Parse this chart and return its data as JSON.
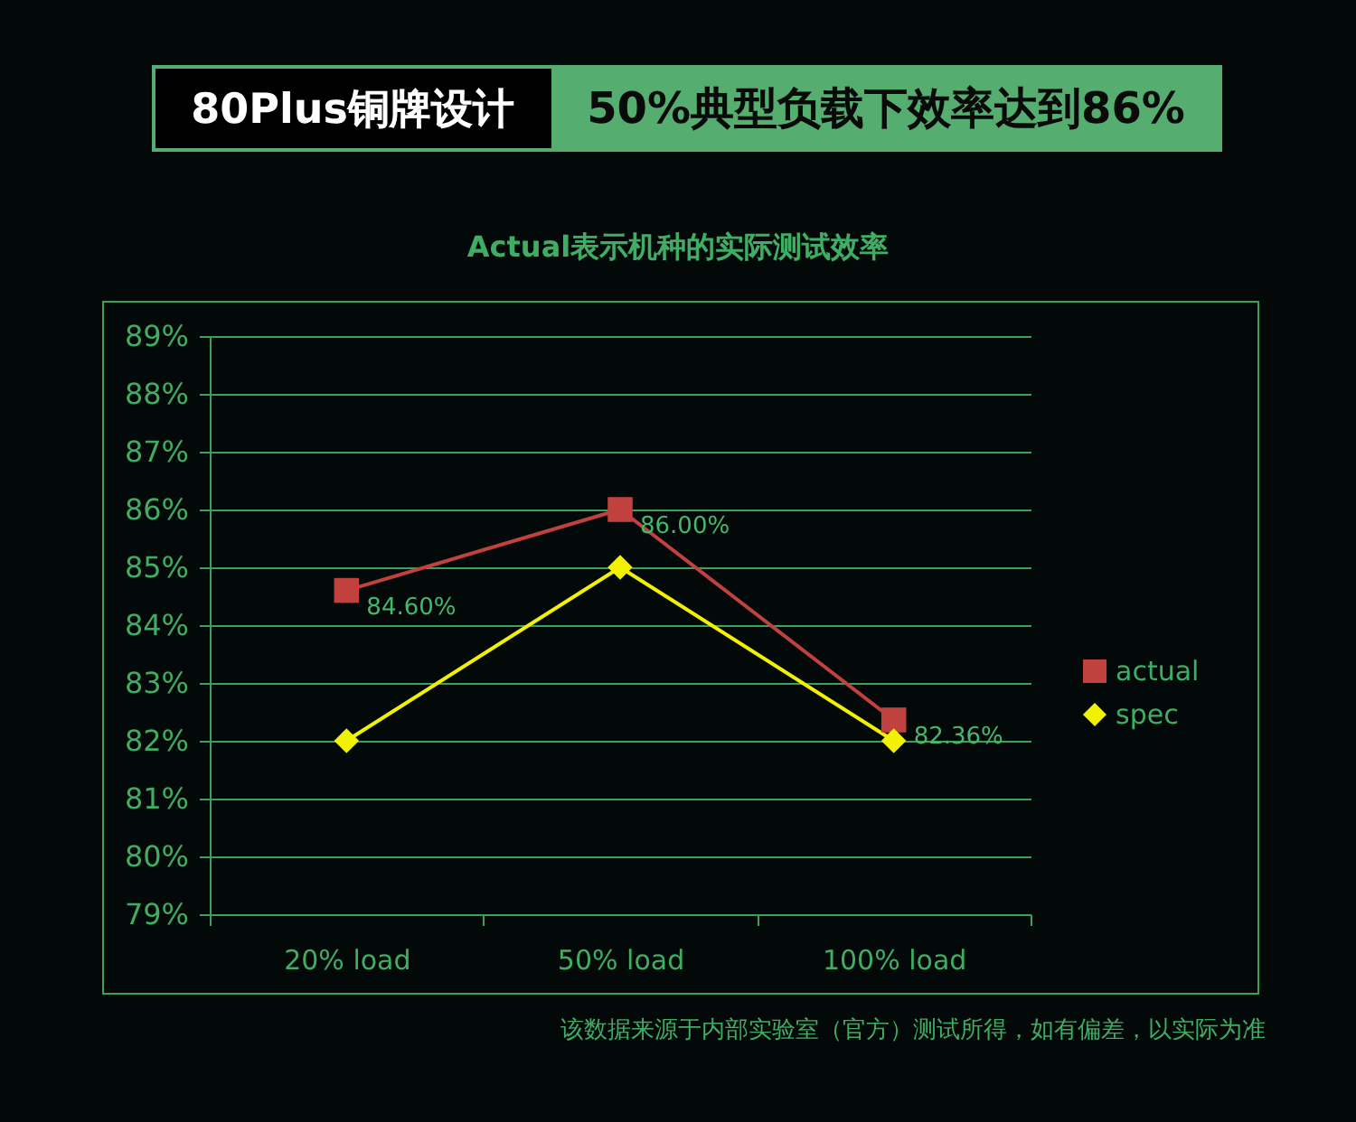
{
  "chart_data": {
    "type": "line",
    "title": "80Plus铜牌设计",
    "subtitle": "50%典型负载下效率达到86%",
    "annotations": [
      "Actual表示机种的实际测试效率",
      "该数据来源于内部实验室（官方）测试所得，如有偏差，以实际为准"
    ],
    "categories": [
      "20% load",
      "50% load",
      "100% load"
    ],
    "series": [
      {
        "name": "actual",
        "color": "#c0413d",
        "marker": "square",
        "values": [
          84.6,
          86.0,
          82.36
        ],
        "value_labels": [
          "84.60%",
          "86.00%",
          "82.36%"
        ]
      },
      {
        "name": "spec",
        "color": "#f2f200",
        "marker": "diamond",
        "values": [
          82,
          85,
          82
        ]
      }
    ],
    "ylim": [
      79,
      89
    ],
    "yticks": [
      {
        "value": 79,
        "label": "79%"
      },
      {
        "value": 80,
        "label": "80%"
      },
      {
        "value": 81,
        "label": "81%"
      },
      {
        "value": 82,
        "label": "82%"
      },
      {
        "value": 83,
        "label": "83%"
      },
      {
        "value": 84,
        "label": "84%"
      },
      {
        "value": 85,
        "label": "85%"
      },
      {
        "value": 86,
        "label": "86%"
      },
      {
        "value": 87,
        "label": "87%"
      },
      {
        "value": 88,
        "label": "88%"
      },
      {
        "value": 89,
        "label": "89%"
      }
    ],
    "grid": "y",
    "legend": "right",
    "line_style": "solid"
  }
}
